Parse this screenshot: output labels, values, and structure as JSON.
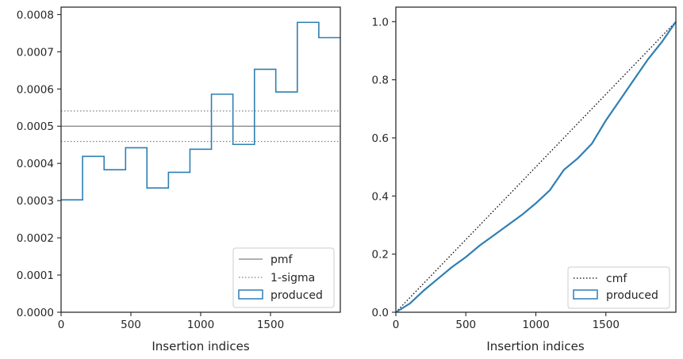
{
  "colors": {
    "produced": "#2f7fb4",
    "pmf": "#808080",
    "sigma": "#808080",
    "cmf": "#000000",
    "axes": "#262626",
    "legend_border": "#cccccc"
  },
  "chart_data": [
    {
      "type": "step",
      "title": "",
      "xlabel": "Insertion indices",
      "ylabel": "",
      "xlim": [
        0,
        2000
      ],
      "ylim": [
        0,
        0.00082
      ],
      "xticks": [
        0,
        500,
        1000,
        1500
      ],
      "xtick_labels": [
        "0",
        "500",
        "1000",
        "1500"
      ],
      "yticks": [
        0,
        0.0001,
        0.0002,
        0.0003,
        0.0004,
        0.0005,
        0.0006,
        0.0007,
        0.0008
      ],
      "ytick_labels": [
        "0.0000",
        "0.0001",
        "0.0002",
        "0.0003",
        "0.0004",
        "0.0005",
        "0.0006",
        "0.0007",
        "0.0008"
      ],
      "grid": false,
      "legend_position": "lower-right",
      "legend": [
        "pmf",
        "1-sigma",
        "produced"
      ],
      "reference_lines": [
        {
          "name": "pmf",
          "style": "solid",
          "y": 0.0005
        },
        {
          "name": "1-sigma",
          "style": "dotted",
          "y": 0.000541
        },
        {
          "name": "1-sigma",
          "style": "dotted",
          "y": 0.000459
        }
      ],
      "series": [
        {
          "name": "produced",
          "bin_edges": [
            0,
            154,
            308,
            462,
            615,
            769,
            923,
            1077,
            1231,
            1385,
            1538,
            1692,
            1846,
            2000
          ],
          "values": [
            0.000302,
            0.000419,
            0.000383,
            0.000442,
            0.000334,
            0.000376,
            0.000438,
            0.000586,
            0.000451,
            0.000653,
            0.000592,
            0.000779,
            0.000738
          ]
        }
      ]
    },
    {
      "type": "line",
      "title": "",
      "xlabel": "Insertion indices",
      "ylabel": "",
      "xlim": [
        0,
        2000
      ],
      "ylim": [
        0,
        1.05
      ],
      "xticks": [
        0,
        500,
        1000,
        1500
      ],
      "xtick_labels": [
        "0",
        "500",
        "1000",
        "1500"
      ],
      "yticks": [
        0,
        0.2,
        0.4,
        0.6,
        0.8,
        1.0
      ],
      "ytick_labels": [
        "0.0",
        "0.2",
        "0.4",
        "0.6",
        "0.8",
        "1.0"
      ],
      "grid": false,
      "legend_position": "lower-right",
      "legend": [
        "cmf",
        "produced"
      ],
      "series": [
        {
          "name": "cmf",
          "style": "dotted",
          "x": [
            0,
            2000
          ],
          "y": [
            0,
            1.0
          ]
        },
        {
          "name": "produced",
          "style": "solid",
          "x": [
            0,
            100,
            200,
            300,
            400,
            500,
            600,
            700,
            800,
            900,
            1000,
            1100,
            1200,
            1300,
            1400,
            1500,
            1600,
            1700,
            1800,
            1900,
            2000
          ],
          "y": [
            0,
            0.03,
            0.075,
            0.115,
            0.155,
            0.19,
            0.23,
            0.265,
            0.3,
            0.335,
            0.375,
            0.42,
            0.49,
            0.53,
            0.58,
            0.66,
            0.73,
            0.8,
            0.87,
            0.93,
            1.0
          ]
        }
      ]
    }
  ]
}
